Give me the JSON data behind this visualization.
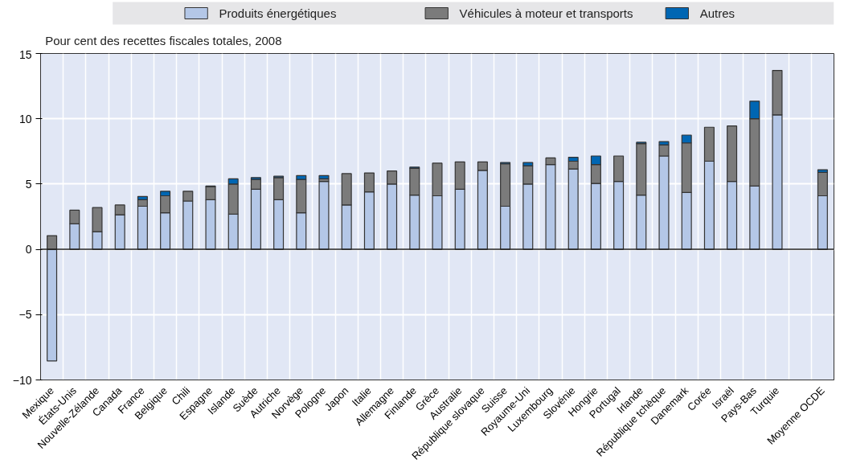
{
  "chart_data": {
    "type": "bar",
    "stacked": true,
    "ylabel": "Pour cent des recettes fiscales totales, 2008",
    "categories": [
      "Mexique",
      "États-Unis",
      "Nouvelle-Zélande",
      "Canada",
      "France",
      "Belgique",
      "Chili",
      "Espagne",
      "Islande",
      "Suède",
      "Autriche",
      "Norvège",
      "Pologne",
      "Japon",
      "Italie",
      "Allemagne",
      "Finlande",
      "Grèce",
      "Australie",
      "République slovaque",
      "Suisse",
      "Royaume-Uni",
      "Luxembourg",
      "Slovénie",
      "Hongrie",
      "Portugal",
      "Irlande",
      "République tchèque",
      "Danemark",
      "Corée",
      "Israël",
      "Pays-Bas",
      "Turquie",
      null,
      "Moyenne OCDE"
    ],
    "series": [
      {
        "name": "Produits énergétiques",
        "color": "#b4c7e7",
        "values": [
          -8.55,
          1.95,
          1.35,
          2.65,
          3.3,
          2.8,
          3.7,
          3.8,
          2.7,
          4.6,
          3.8,
          2.8,
          5.2,
          3.4,
          4.4,
          5.0,
          4.15,
          4.1,
          4.6,
          6.05,
          3.3,
          5.0,
          6.5,
          6.15,
          5.05,
          5.2,
          4.15,
          7.15,
          4.35,
          6.75,
          5.2,
          4.85,
          10.3,
          null,
          4.1
        ]
      },
      {
        "name": "Véhicules à moteur et transports",
        "color": "#7b7b7b",
        "values": [
          1.05,
          1.05,
          1.85,
          0.75,
          0.5,
          1.3,
          0.75,
          1.0,
          2.3,
          0.75,
          1.7,
          2.55,
          0.2,
          2.4,
          1.45,
          1.0,
          2.05,
          2.5,
          2.1,
          0.65,
          3.25,
          1.4,
          0.5,
          0.6,
          1.45,
          1.95,
          3.95,
          0.85,
          3.8,
          2.6,
          4.25,
          5.15,
          3.4,
          null,
          1.8
        ]
      },
      {
        "name": "Autres",
        "color": "#0066b3",
        "values": [
          null,
          null,
          null,
          null,
          0.25,
          0.35,
          null,
          0.05,
          0.4,
          0.15,
          0.1,
          0.3,
          0.25,
          null,
          null,
          null,
          0.1,
          null,
          null,
          null,
          0.1,
          0.25,
          null,
          0.3,
          0.65,
          null,
          0.1,
          0.25,
          0.6,
          null,
          null,
          1.35,
          null,
          null,
          0.2
        ]
      }
    ],
    "ylim": [
      -10,
      15
    ],
    "yticks": [
      -10,
      -5,
      0,
      5,
      10,
      15
    ],
    "grid": true,
    "legend": "top"
  }
}
